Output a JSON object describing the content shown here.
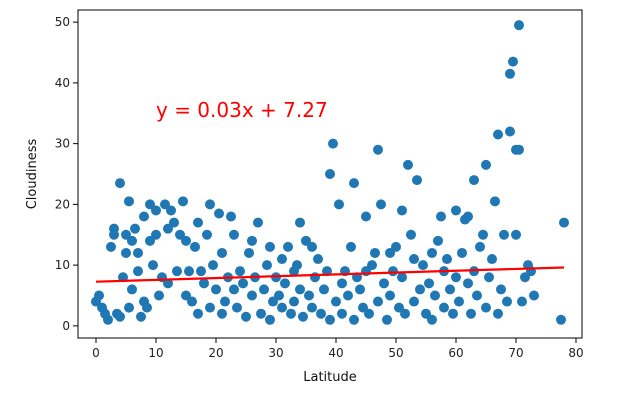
{
  "chart_data": {
    "type": "scatter",
    "xlabel": "Latitude",
    "ylabel": "Cloudiness",
    "xlim": [
      -3,
      81
    ],
    "ylim": [
      -2,
      52
    ],
    "xticks": [
      0,
      10,
      20,
      30,
      40,
      50,
      60,
      70,
      80
    ],
    "yticks": [
      0,
      10,
      20,
      30,
      40,
      50
    ],
    "grid": false,
    "legend": "none",
    "point_color": "#1f77b4",
    "line_color": "#ff0000",
    "annotation": {
      "text": "y = 0.03x + 7.27",
      "color": "#ff0000",
      "x": 10,
      "y": 35.5
    },
    "regression": {
      "slope": 0.03,
      "intercept": 7.27,
      "x_start": 0,
      "x_end": 78
    },
    "points": [
      [
        0,
        4
      ],
      [
        0.5,
        5
      ],
      [
        1,
        3
      ],
      [
        1.5,
        2
      ],
      [
        2,
        1
      ],
      [
        2.5,
        13
      ],
      [
        3,
        16
      ],
      [
        3,
        15
      ],
      [
        3.5,
        2
      ],
      [
        4,
        23.5
      ],
      [
        4,
        1.5
      ],
      [
        4.5,
        8
      ],
      [
        5,
        12
      ],
      [
        5,
        15
      ],
      [
        5.5,
        20.5
      ],
      [
        5.5,
        3
      ],
      [
        6,
        6
      ],
      [
        6,
        14
      ],
      [
        6.5,
        16
      ],
      [
        7,
        9
      ],
      [
        7,
        12
      ],
      [
        7.5,
        1.5
      ],
      [
        8,
        18
      ],
      [
        8,
        4
      ],
      [
        8.5,
        3
      ],
      [
        9,
        20
      ],
      [
        9,
        14
      ],
      [
        9.5,
        10
      ],
      [
        10,
        19
      ],
      [
        10,
        15
      ],
      [
        10.5,
        5
      ],
      [
        11,
        8
      ],
      [
        11.5,
        20
      ],
      [
        12,
        16
      ],
      [
        12,
        7
      ],
      [
        12.5,
        19
      ],
      [
        13,
        17
      ],
      [
        13.5,
        9
      ],
      [
        14,
        15
      ],
      [
        14.5,
        20.5
      ],
      [
        15,
        5
      ],
      [
        15,
        14
      ],
      [
        15.5,
        9
      ],
      [
        16,
        4
      ],
      [
        16.5,
        13
      ],
      [
        17,
        17
      ],
      [
        17,
        2
      ],
      [
        17.5,
        9
      ],
      [
        18,
        7
      ],
      [
        18.5,
        15
      ],
      [
        19,
        20
      ],
      [
        19,
        3
      ],
      [
        19.5,
        10
      ],
      [
        20,
        6
      ],
      [
        20.5,
        18.5
      ],
      [
        21,
        12
      ],
      [
        21,
        2
      ],
      [
        21.5,
        4
      ],
      [
        22,
        8
      ],
      [
        22.5,
        18
      ],
      [
        23,
        15
      ],
      [
        23,
        6
      ],
      [
        23.5,
        3
      ],
      [
        24,
        9
      ],
      [
        24.5,
        7
      ],
      [
        25,
        1.5
      ],
      [
        25.5,
        12
      ],
      [
        26,
        14
      ],
      [
        26,
        5
      ],
      [
        26.5,
        8
      ],
      [
        27,
        17
      ],
      [
        27.5,
        2
      ],
      [
        28,
        6
      ],
      [
        28.5,
        10
      ],
      [
        29,
        13
      ],
      [
        29,
        1
      ],
      [
        29.5,
        4
      ],
      [
        30,
        8
      ],
      [
        30.5,
        5
      ],
      [
        31,
        11
      ],
      [
        31,
        3
      ],
      [
        31.5,
        7
      ],
      [
        32,
        13
      ],
      [
        32.5,
        2
      ],
      [
        33,
        9
      ],
      [
        33,
        4
      ],
      [
        33.5,
        10
      ],
      [
        34,
        17
      ],
      [
        34,
        6
      ],
      [
        34.5,
        1.5
      ],
      [
        35,
        14
      ],
      [
        35.5,
        5
      ],
      [
        36,
        13
      ],
      [
        36,
        3
      ],
      [
        36.5,
        8
      ],
      [
        37,
        11
      ],
      [
        37.5,
        2
      ],
      [
        38,
        6
      ],
      [
        38.5,
        9
      ],
      [
        39,
        25
      ],
      [
        39,
        1
      ],
      [
        39.5,
        30
      ],
      [
        40,
        4
      ],
      [
        40.5,
        20
      ],
      [
        41,
        7
      ],
      [
        41,
        2
      ],
      [
        41.5,
        9
      ],
      [
        42,
        5
      ],
      [
        42.5,
        13
      ],
      [
        43,
        23.5
      ],
      [
        43,
        1
      ],
      [
        43.5,
        8
      ],
      [
        44,
        6
      ],
      [
        44.5,
        3
      ],
      [
        45,
        18
      ],
      [
        45,
        9
      ],
      [
        45.5,
        2
      ],
      [
        46,
        10
      ],
      [
        46.5,
        12
      ],
      [
        47,
        29
      ],
      [
        47,
        4
      ],
      [
        47.5,
        20
      ],
      [
        48,
        7
      ],
      [
        48.5,
        1
      ],
      [
        49,
        12
      ],
      [
        49,
        5
      ],
      [
        49.5,
        9
      ],
      [
        50,
        13
      ],
      [
        50.5,
        3
      ],
      [
        51,
        19
      ],
      [
        51,
        8
      ],
      [
        51.5,
        2
      ],
      [
        52,
        26.5
      ],
      [
        52.5,
        15
      ],
      [
        53,
        11
      ],
      [
        53,
        4
      ],
      [
        53.5,
        24
      ],
      [
        54,
        6
      ],
      [
        54.5,
        10
      ],
      [
        55,
        2
      ],
      [
        55.5,
        7
      ],
      [
        56,
        12
      ],
      [
        56,
        1
      ],
      [
        56.5,
        5
      ],
      [
        57,
        14
      ],
      [
        57.5,
        18
      ],
      [
        58,
        9
      ],
      [
        58,
        3
      ],
      [
        58.5,
        11
      ],
      [
        59,
        6
      ],
      [
        59.5,
        2
      ],
      [
        60,
        19
      ],
      [
        60,
        8
      ],
      [
        60.5,
        4
      ],
      [
        61,
        12
      ],
      [
        61.5,
        17.5
      ],
      [
        62,
        7
      ],
      [
        62,
        18
      ],
      [
        62.5,
        2
      ],
      [
        63,
        24
      ],
      [
        63,
        9
      ],
      [
        63.5,
        5
      ],
      [
        64,
        13
      ],
      [
        64.5,
        15
      ],
      [
        65,
        3
      ],
      [
        65,
        26.5
      ],
      [
        65.5,
        8
      ],
      [
        66,
        11
      ],
      [
        66.5,
        20.5
      ],
      [
        67,
        31.5
      ],
      [
        67,
        2
      ],
      [
        67.5,
        6
      ],
      [
        68,
        15
      ],
      [
        68.5,
        4
      ],
      [
        69,
        32
      ],
      [
        69,
        41.5
      ],
      [
        69.5,
        43.5
      ],
      [
        70,
        15
      ],
      [
        70,
        29
      ],
      [
        70.5,
        49.5
      ],
      [
        70.5,
        29
      ],
      [
        71,
        4
      ],
      [
        71.5,
        8
      ],
      [
        72,
        10
      ],
      [
        72.5,
        9
      ],
      [
        73,
        5
      ],
      [
        77.5,
        1
      ],
      [
        78,
        17
      ]
    ]
  }
}
